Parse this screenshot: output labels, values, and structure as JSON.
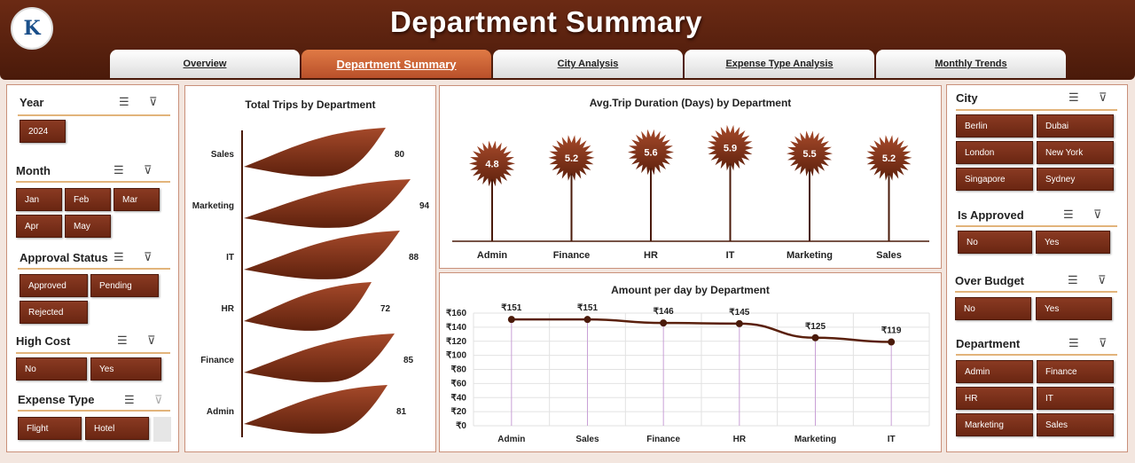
{
  "header": {
    "title": "Department Summary",
    "logo_text": "K"
  },
  "tabs": [
    {
      "label": "Overview",
      "active": false
    },
    {
      "label": "Department Summary",
      "active": true
    },
    {
      "label": "City Analysis",
      "active": false
    },
    {
      "label": "Expense Type Analysis",
      "active": false
    },
    {
      "label": "Monthly Trends",
      "active": false
    }
  ],
  "left_slicers": {
    "year": {
      "title": "Year",
      "items": [
        "2024"
      ]
    },
    "month": {
      "title": "Month",
      "items": [
        "Jan",
        "Feb",
        "Mar",
        "Apr",
        "May"
      ]
    },
    "approval": {
      "title": "Approval Status",
      "items": [
        "Approved",
        "Pending",
        "Rejected"
      ]
    },
    "high_cost": {
      "title": "High Cost",
      "items": [
        "No",
        "Yes"
      ]
    },
    "expense_type": {
      "title": "Expense Type",
      "items": [
        "Flight",
        "Hotel"
      ]
    }
  },
  "right_slicers": {
    "city": {
      "title": "City",
      "items": [
        "Berlin",
        "Dubai",
        "London",
        "New York",
        "Singapore",
        "Sydney"
      ]
    },
    "approved": {
      "title": "Is Approved",
      "items": [
        "No",
        "Yes"
      ]
    },
    "over_budget": {
      "title": "Over Budget",
      "items": [
        "No",
        "Yes"
      ]
    },
    "department": {
      "title": "Department",
      "items": [
        "Admin",
        "Finance",
        "HR",
        "IT",
        "Marketing",
        "Sales"
      ]
    }
  },
  "chart_data": [
    {
      "type": "bar",
      "title": "Total Trips by Department",
      "categories": [
        "Sales",
        "Marketing",
        "IT",
        "HR",
        "Finance",
        "Admin"
      ],
      "values": [
        80,
        94,
        88,
        72,
        85,
        81
      ],
      "orientation": "horizontal"
    },
    {
      "type": "bar",
      "title": "Avg.Trip Duration (Days) by Department",
      "categories": [
        "Admin",
        "Finance",
        "HR",
        "IT",
        "Marketing",
        "Sales"
      ],
      "values": [
        4.8,
        5.2,
        5.6,
        5.9,
        5.5,
        5.2
      ]
    },
    {
      "type": "line",
      "title": "Amount per day by Department",
      "categories": [
        "Admin",
        "Sales",
        "Finance",
        "HR",
        "Marketing",
        "IT"
      ],
      "values": [
        151,
        151,
        146,
        145,
        125,
        119
      ],
      "value_labels": [
        "₹151",
        "₹151",
        "₹146",
        "₹145",
        "₹125",
        "₹119"
      ],
      "y_ticks": [
        "₹0",
        "₹20",
        "₹40",
        "₹60",
        "₹80",
        "₹100",
        "₹120",
        "₹140",
        "₹160"
      ],
      "ylim": [
        0,
        160
      ],
      "grid": true
    }
  ],
  "colors": {
    "accent": "#7a2e16",
    "header": "#5a200d",
    "tab_active": "#c8603a"
  }
}
